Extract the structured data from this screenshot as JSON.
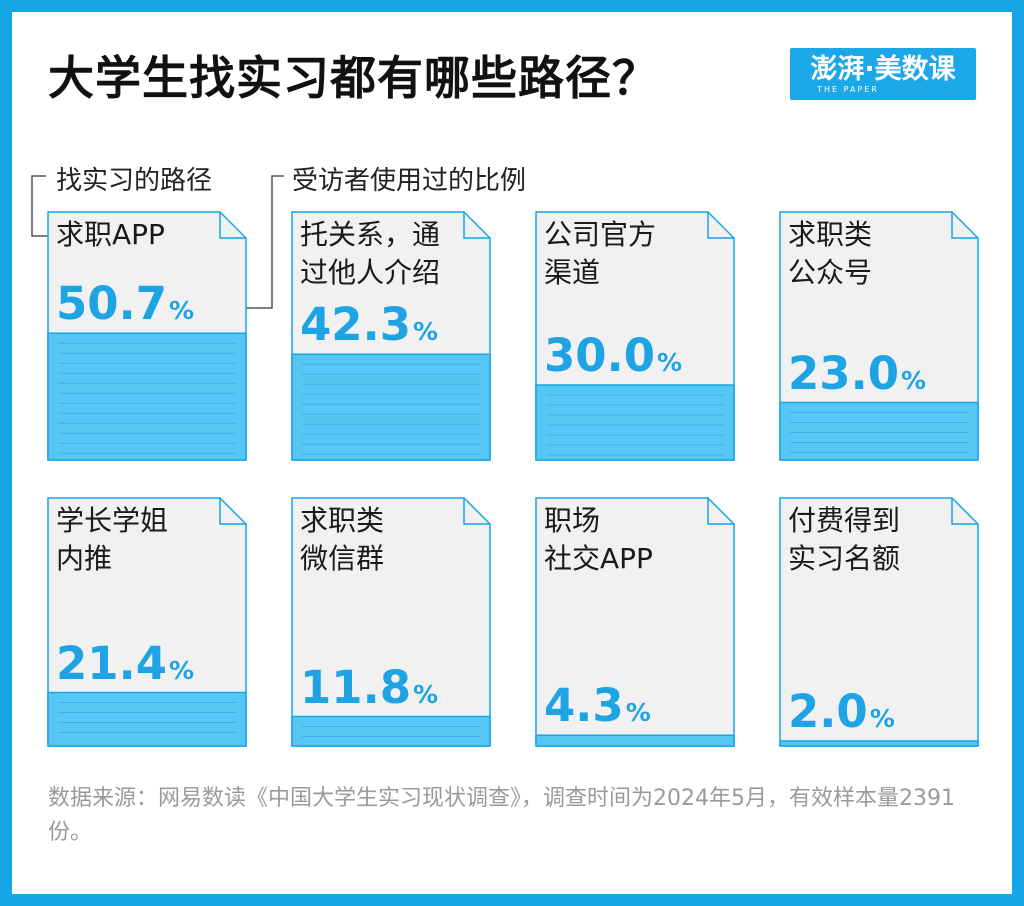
{
  "header": {
    "title": "大学生找实习都有哪些路径？",
    "logo_text": "澎湃·美数课",
    "logo_subtext": "THE PAPER"
  },
  "legend": {
    "path_label": "找实习的路径",
    "ratio_label": "受访者使用过的比例"
  },
  "colors": {
    "frame": "#17a6e6",
    "bar_fill": "#56c7f3",
    "card_fill": "#f1f1f1",
    "value_text": "#1ea4e4"
  },
  "chart_data": {
    "type": "bar",
    "unit": "%",
    "ylim": [
      0,
      100
    ],
    "categories": [
      "求职APP",
      "托关系，通\n过他人介绍",
      "公司官方\n渠道",
      "求职类\n公众号",
      "学长学姐\n内推",
      "求职类\n微信群",
      "职场\n社交APP",
      "付费得到\n实习名额"
    ],
    "values": [
      50.7,
      42.3,
      30.0,
      23.0,
      21.4,
      11.8,
      4.3,
      2.0
    ],
    "value_labels": [
      "50.7",
      "42.3",
      "30.0",
      "23.0",
      "21.4",
      "11.8",
      "4.3",
      "2.0"
    ]
  },
  "footer": {
    "source": "数据来源：网易数读《中国大学生实习现状调查》，调查时间为2024年5月，有效样本量2391份。"
  }
}
